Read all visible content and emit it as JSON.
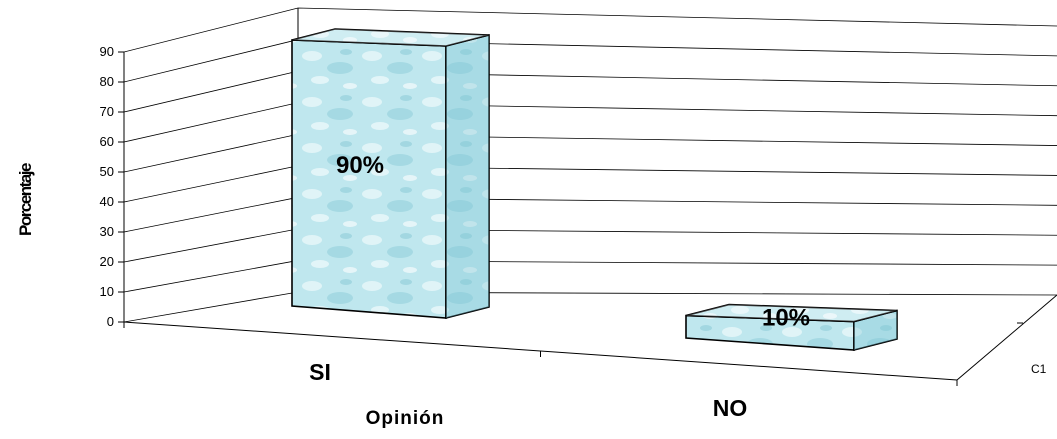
{
  "chart_data": {
    "type": "bar",
    "categories": [
      "SI",
      "NO"
    ],
    "series": [
      {
        "name": "C1",
        "values": [
          90,
          10
        ]
      }
    ],
    "data_labels": [
      "90%",
      "10%"
    ],
    "xlabel": "Opinión",
    "ylabel": "Porcentaje",
    "ylim": [
      0,
      90
    ],
    "yticks": [
      0,
      10,
      20,
      30,
      40,
      50,
      60,
      70,
      80,
      90
    ],
    "grid": true,
    "style": "3d-column",
    "colors": {
      "bar_light": "#cdeef3",
      "bar_mid": "#a9dde6",
      "bar_dark": "#7ec6d3",
      "edge": "#000000"
    }
  }
}
